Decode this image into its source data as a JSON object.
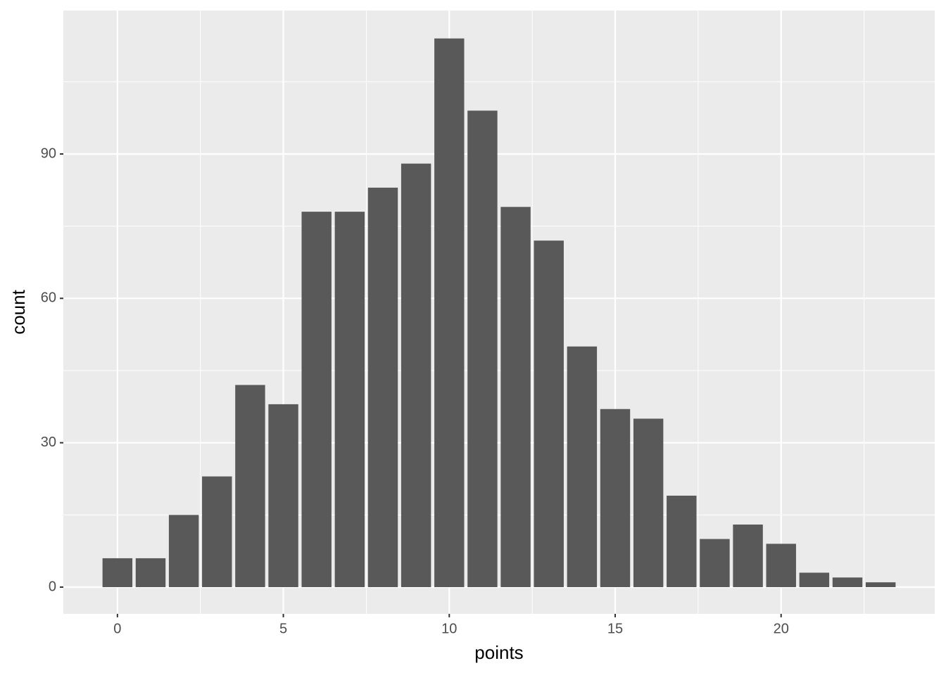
{
  "chart_data": {
    "type": "bar",
    "x_label": "points",
    "y_label": "count",
    "x": [
      0,
      1,
      2,
      3,
      4,
      5,
      6,
      7,
      8,
      9,
      10,
      11,
      12,
      13,
      14,
      15,
      16,
      17,
      18,
      19,
      20,
      21,
      22,
      23
    ],
    "values": [
      6,
      6,
      15,
      23,
      42,
      38,
      78,
      78,
      83,
      88,
      114,
      99,
      79,
      72,
      50,
      37,
      35,
      19,
      10,
      13,
      9,
      3,
      2,
      1
    ],
    "color": "#595959",
    "xlim": [
      -1.63,
      24.63
    ],
    "xticks": [
      0,
      5,
      10,
      15,
      20
    ],
    "ylim": [
      -5.55,
      119.8
    ],
    "yticks": [
      0,
      30,
      60,
      90
    ],
    "grid": true
  }
}
